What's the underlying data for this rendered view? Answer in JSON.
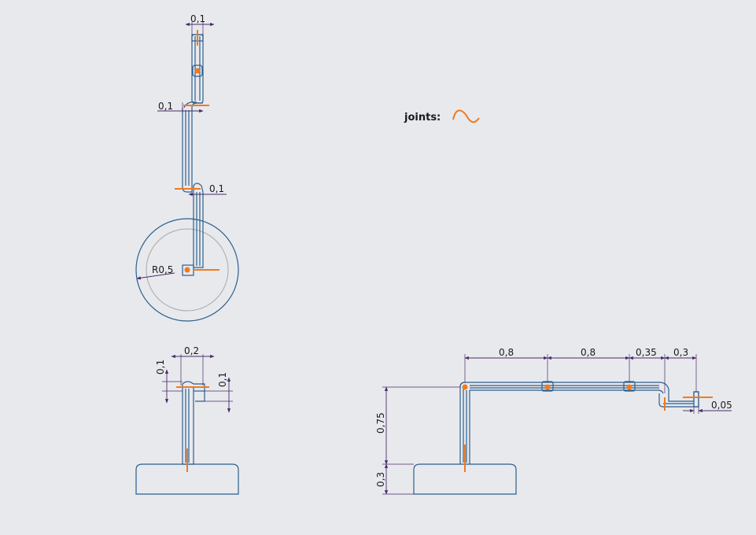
{
  "legend": {
    "label": "joints:",
    "joint_color": "#f07a1e"
  },
  "colors": {
    "part": "#2a5f8e",
    "dimension": "#4a2a6a",
    "background": "#e8e9ed"
  },
  "top_view": {
    "dims": {
      "top_width": "0,1",
      "left_offset": "0,1",
      "right_offset": "0,1",
      "radius": "R0,5"
    }
  },
  "front_view": {
    "dims": {
      "width": "0,2",
      "left_height": "0,1",
      "right_height": "0,1"
    }
  },
  "side_view": {
    "dims": {
      "seg1": "0,8",
      "seg2": "0,8",
      "seg3": "0,35",
      "seg4": "0,3",
      "height": "0,75",
      "base": "0,3",
      "tip": "0,05"
    }
  }
}
